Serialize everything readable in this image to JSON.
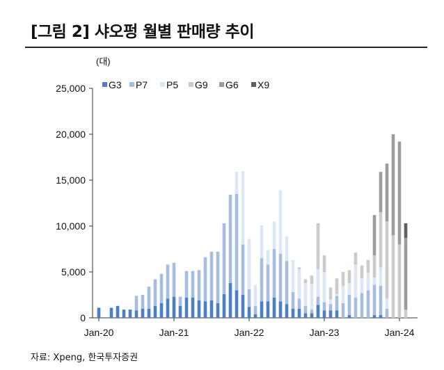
{
  "title": "[그림 2] 샤오펑 월별 판매량 추이",
  "unit_label": "(대)",
  "source": "자료: Xpeng, 한국투자증권",
  "colors": {
    "G3": "#4a7fc1",
    "P7": "#a6bde0",
    "P5": "#dde6f4",
    "G9": "#cbcbcb",
    "G6": "#9c9c9c",
    "X9": "#5e5e5e"
  },
  "chart_data": {
    "type": "bar",
    "stacked": true,
    "ylim": [
      0,
      25000
    ],
    "y_ticks": [
      0,
      5000,
      10000,
      15000,
      20000,
      25000
    ],
    "y_tick_labels": [
      "0",
      "5,000",
      "10,000",
      "15,000",
      "20,000",
      "25,000"
    ],
    "x_tick_labels": [
      "Jan-20",
      "Jan-21",
      "Jan-22",
      "Jan-23",
      "Jan-24"
    ],
    "x_tick_positions": [
      "2020-01",
      "2021-01",
      "2022-01",
      "2023-01",
      "2024-01"
    ],
    "legend_position": "top-left",
    "categories": [
      "2020-01",
      "2020-02",
      "2020-03",
      "2020-04",
      "2020-05",
      "2020-06",
      "2020-07",
      "2020-08",
      "2020-09",
      "2020-10",
      "2020-11",
      "2020-12",
      "2021-01",
      "2021-02",
      "2021-03",
      "2021-04",
      "2021-05",
      "2021-06",
      "2021-07",
      "2021-08",
      "2021-09",
      "2021-10",
      "2021-11",
      "2021-12",
      "2022-01",
      "2022-02",
      "2022-03",
      "2022-04",
      "2022-05",
      "2022-06",
      "2022-07",
      "2022-08",
      "2022-09",
      "2022-10",
      "2022-11",
      "2022-12",
      "2023-01",
      "2023-02",
      "2023-03",
      "2023-04",
      "2023-05",
      "2023-06",
      "2023-07",
      "2023-08",
      "2023-09",
      "2023-10",
      "2023-11",
      "2023-12",
      "2024-01",
      "2024-02"
    ],
    "series": [
      {
        "name": "G3",
        "values": [
          1100,
          0,
          1100,
          1300,
          900,
          900,
          800,
          1000,
          1000,
          1300,
          1600,
          2100,
          2300,
          1300,
          2200,
          2200,
          1900,
          1800,
          1900,
          1600,
          2600,
          3800,
          3000,
          2500,
          1200,
          400,
          1800,
          1800,
          2200,
          1800,
          1500,
          1000,
          1000,
          500,
          500,
          1400,
          800,
          800,
          800,
          0,
          300,
          0,
          0,
          0,
          300,
          300,
          0,
          0,
          0,
          0
        ]
      },
      {
        "name": "P7",
        "values": [
          0,
          0,
          0,
          0,
          0,
          0,
          1600,
          1500,
          2400,
          2900,
          3200,
          3700,
          3700,
          1000,
          2900,
          2900,
          3300,
          4800,
          5300,
          5600,
          7700,
          9600,
          10500,
          5500,
          1900,
          900,
          4700,
          4000,
          5300,
          5200,
          4700,
          1800,
          1100,
          800,
          400,
          900,
          900,
          700,
          1600,
          1600,
          2200,
          2200,
          2700,
          3000,
          3300,
          3200,
          1000,
          0,
          0,
          0
        ]
      },
      {
        "name": "P5",
        "values": [
          0,
          0,
          0,
          0,
          0,
          0,
          0,
          0,
          0,
          0,
          0,
          0,
          0,
          0,
          0,
          0,
          0,
          0,
          0,
          0,
          0,
          0,
          2400,
          8000,
          5500,
          2300,
          3600,
          1600,
          3000,
          6900,
          2700,
          3500,
          3200,
          2500,
          2800,
          3000,
          3300,
          500,
          200,
          1900,
          1300,
          3600,
          1600,
          1900,
          800,
          2000,
          1100,
          0,
          0,
          0
        ]
      },
      {
        "name": "G9",
        "values": [
          0,
          0,
          0,
          0,
          0,
          0,
          0,
          0,
          0,
          0,
          0,
          0,
          0,
          0,
          0,
          0,
          0,
          0,
          0,
          0,
          0,
          0,
          0,
          0,
          0,
          0,
          0,
          0,
          0,
          0,
          0,
          0,
          200,
          400,
          900,
          5000,
          1800,
          1300,
          1700,
          1500,
          1400,
          1300,
          1400,
          1400,
          2400,
          6000,
          8400,
          9000,
          8000,
          900
        ]
      },
      {
        "name": "G6",
        "values": [
          0,
          0,
          0,
          0,
          0,
          0,
          0,
          0,
          0,
          0,
          0,
          0,
          0,
          0,
          0,
          0,
          0,
          0,
          0,
          0,
          0,
          0,
          0,
          0,
          0,
          0,
          0,
          0,
          0,
          0,
          0,
          0,
          0,
          0,
          0,
          0,
          0,
          0,
          0,
          0,
          0,
          0,
          0,
          0,
          4400,
          4400,
          6300,
          11000,
          11200,
          7800
        ]
      },
      {
        "name": "X9",
        "values": [
          0,
          0,
          0,
          0,
          0,
          0,
          0,
          0,
          0,
          0,
          0,
          0,
          0,
          0,
          0,
          0,
          0,
          0,
          0,
          0,
          0,
          0,
          0,
          0,
          0,
          0,
          0,
          0,
          0,
          0,
          0,
          0,
          0,
          0,
          0,
          0,
          0,
          0,
          0,
          0,
          0,
          0,
          0,
          0,
          0,
          0,
          0,
          0,
          0,
          1600
        ]
      }
    ]
  }
}
